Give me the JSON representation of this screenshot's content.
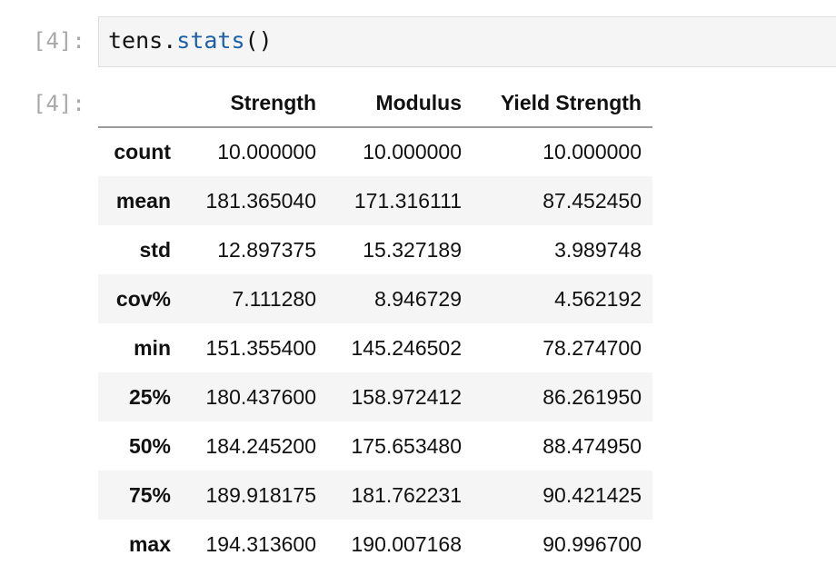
{
  "input_cell": {
    "prompt": "[4]:",
    "code_obj": "tens",
    "code_dot": ".",
    "code_method": "stats",
    "code_parens": "()"
  },
  "output_cell": {
    "prompt": "[4]:"
  },
  "table": {
    "columns": [
      "",
      "Strength",
      "Modulus",
      "Yield Strength"
    ],
    "rows": [
      {
        "label": "count",
        "values": [
          "10.000000",
          "10.000000",
          "10.000000"
        ]
      },
      {
        "label": "mean",
        "values": [
          "181.365040",
          "171.316111",
          "87.452450"
        ]
      },
      {
        "label": "std",
        "values": [
          "12.897375",
          "15.327189",
          "3.989748"
        ]
      },
      {
        "label": "cov%",
        "values": [
          "7.111280",
          "8.946729",
          "4.562192"
        ]
      },
      {
        "label": "min",
        "values": [
          "151.355400",
          "145.246502",
          "78.274700"
        ]
      },
      {
        "label": "25%",
        "values": [
          "180.437600",
          "158.972412",
          "86.261950"
        ]
      },
      {
        "label": "50%",
        "values": [
          "184.245200",
          "175.653480",
          "88.474950"
        ]
      },
      {
        "label": "75%",
        "values": [
          "189.918175",
          "181.762231",
          "90.421425"
        ]
      },
      {
        "label": "max",
        "values": [
          "194.313600",
          "190.007168",
          "90.996700"
        ]
      }
    ]
  },
  "colors": {
    "prompt": "#a8a8a8",
    "input_bg": "#f5f5f5",
    "method": "#1a5fa8",
    "stripe": "#f5f5f5"
  }
}
